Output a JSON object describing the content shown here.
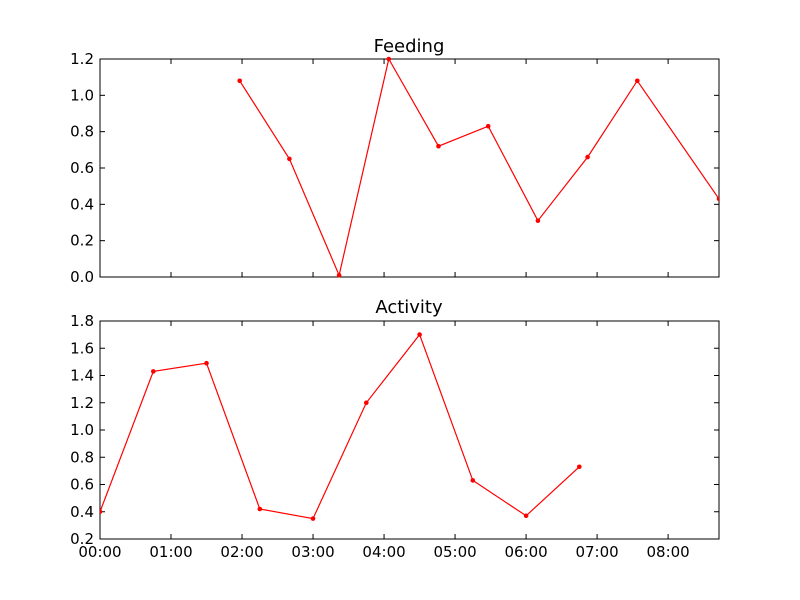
{
  "chart_data": [
    {
      "type": "line",
      "title": "Feeding",
      "xlabel": "",
      "ylabel": "",
      "x_ticks": [
        "00:00",
        "01:00",
        "02:00",
        "03:00",
        "04:00",
        "05:00",
        "06:00",
        "07:00",
        "08:00"
      ],
      "xlim": [
        "00:00",
        "08:43"
      ],
      "ylim": [
        0.0,
        1.2
      ],
      "y_ticks": [
        "0.0",
        "0.2",
        "0.4",
        "0.6",
        "0.8",
        "1.0",
        "1.2"
      ],
      "grid": false,
      "x_tick_labels_visible": false,
      "series": [
        {
          "color": "#ff0000",
          "marker": "dot",
          "x": [
            "01:58",
            "02:40",
            "03:22",
            "04:04",
            "04:46",
            "05:28",
            "06:10",
            "06:52",
            "07:34",
            "08:43"
          ],
          "y": [
            1.08,
            0.65,
            0.01,
            1.2,
            0.72,
            0.83,
            0.31,
            0.66,
            1.08,
            0.43
          ]
        }
      ]
    },
    {
      "type": "line",
      "title": "Activity",
      "xlabel": "",
      "ylabel": "",
      "x_ticks": [
        "00:00",
        "01:00",
        "02:00",
        "03:00",
        "04:00",
        "05:00",
        "06:00",
        "07:00",
        "08:00"
      ],
      "xlim": [
        "00:00",
        "08:43"
      ],
      "ylim": [
        0.2,
        1.8
      ],
      "y_ticks": [
        "0.2",
        "0.4",
        "0.6",
        "0.8",
        "1.0",
        "1.2",
        "1.4",
        "1.6",
        "1.8"
      ],
      "grid": false,
      "x_tick_labels_visible": true,
      "series": [
        {
          "color": "#ff0000",
          "marker": "dot",
          "x": [
            "00:00",
            "00:45",
            "01:30",
            "02:15",
            "03:00",
            "03:45",
            "04:30",
            "05:15",
            "06:00",
            "06:45"
          ],
          "y": [
            0.4,
            1.43,
            1.49,
            0.42,
            0.35,
            1.2,
            1.7,
            0.63,
            0.37,
            0.73
          ]
        }
      ]
    }
  ]
}
